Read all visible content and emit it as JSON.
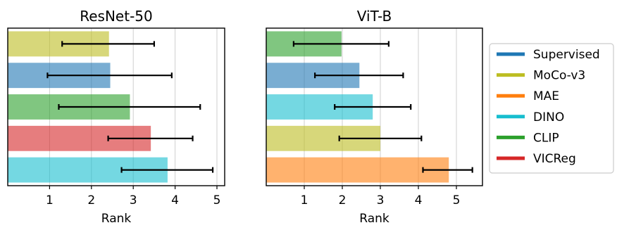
{
  "chart_data": [
    {
      "type": "bar",
      "orientation": "horizontal",
      "title": "ResNet-50",
      "xlabel": "Rank",
      "xlim": [
        0,
        5.15
      ],
      "xticks": [
        1,
        2,
        3,
        4,
        5
      ],
      "grid": "vertical",
      "bars": [
        {
          "series": "MoCo-v3",
          "value": 2.42,
          "err_low": 1.3,
          "err_high": 3.5
        },
        {
          "series": "Supervised",
          "value": 2.45,
          "err_low": 0.95,
          "err_high": 3.92
        },
        {
          "series": "CLIP",
          "value": 2.92,
          "err_low": 1.22,
          "err_high": 4.6
        },
        {
          "series": "VICReg",
          "value": 3.42,
          "err_low": 2.4,
          "err_high": 4.42
        },
        {
          "series": "DINO",
          "value": 3.82,
          "err_low": 2.72,
          "err_high": 4.9
        }
      ]
    },
    {
      "type": "bar",
      "orientation": "horizontal",
      "title": "ViT-B",
      "xlabel": "Rank",
      "xlim": [
        0,
        5.7
      ],
      "xticks": [
        1,
        2,
        3,
        4,
        5
      ],
      "grid": "vertical",
      "bars": [
        {
          "series": "CLIP",
          "value": 1.98,
          "err_low": 0.72,
          "err_high": 3.22
        },
        {
          "series": "Supervised",
          "value": 2.45,
          "err_low": 1.28,
          "err_high": 3.6
        },
        {
          "series": "DINO",
          "value": 2.8,
          "err_low": 1.8,
          "err_high": 3.8
        },
        {
          "series": "MoCo-v3",
          "value": 3.0,
          "err_low": 1.92,
          "err_high": 4.08
        },
        {
          "series": "MAE",
          "value": 4.8,
          "err_low": 4.12,
          "err_high": 5.42
        }
      ]
    }
  ],
  "legend": {
    "placement": "right",
    "items": [
      {
        "name": "Supervised",
        "color": "#1f77b4"
      },
      {
        "name": "MoCo-v3",
        "color": "#bcbd22"
      },
      {
        "name": "MAE",
        "color": "#ff7f0e"
      },
      {
        "name": "DINO",
        "color": "#17becf"
      },
      {
        "name": "CLIP",
        "color": "#2ca02c"
      },
      {
        "name": "VICReg",
        "color": "#d62728"
      }
    ]
  }
}
